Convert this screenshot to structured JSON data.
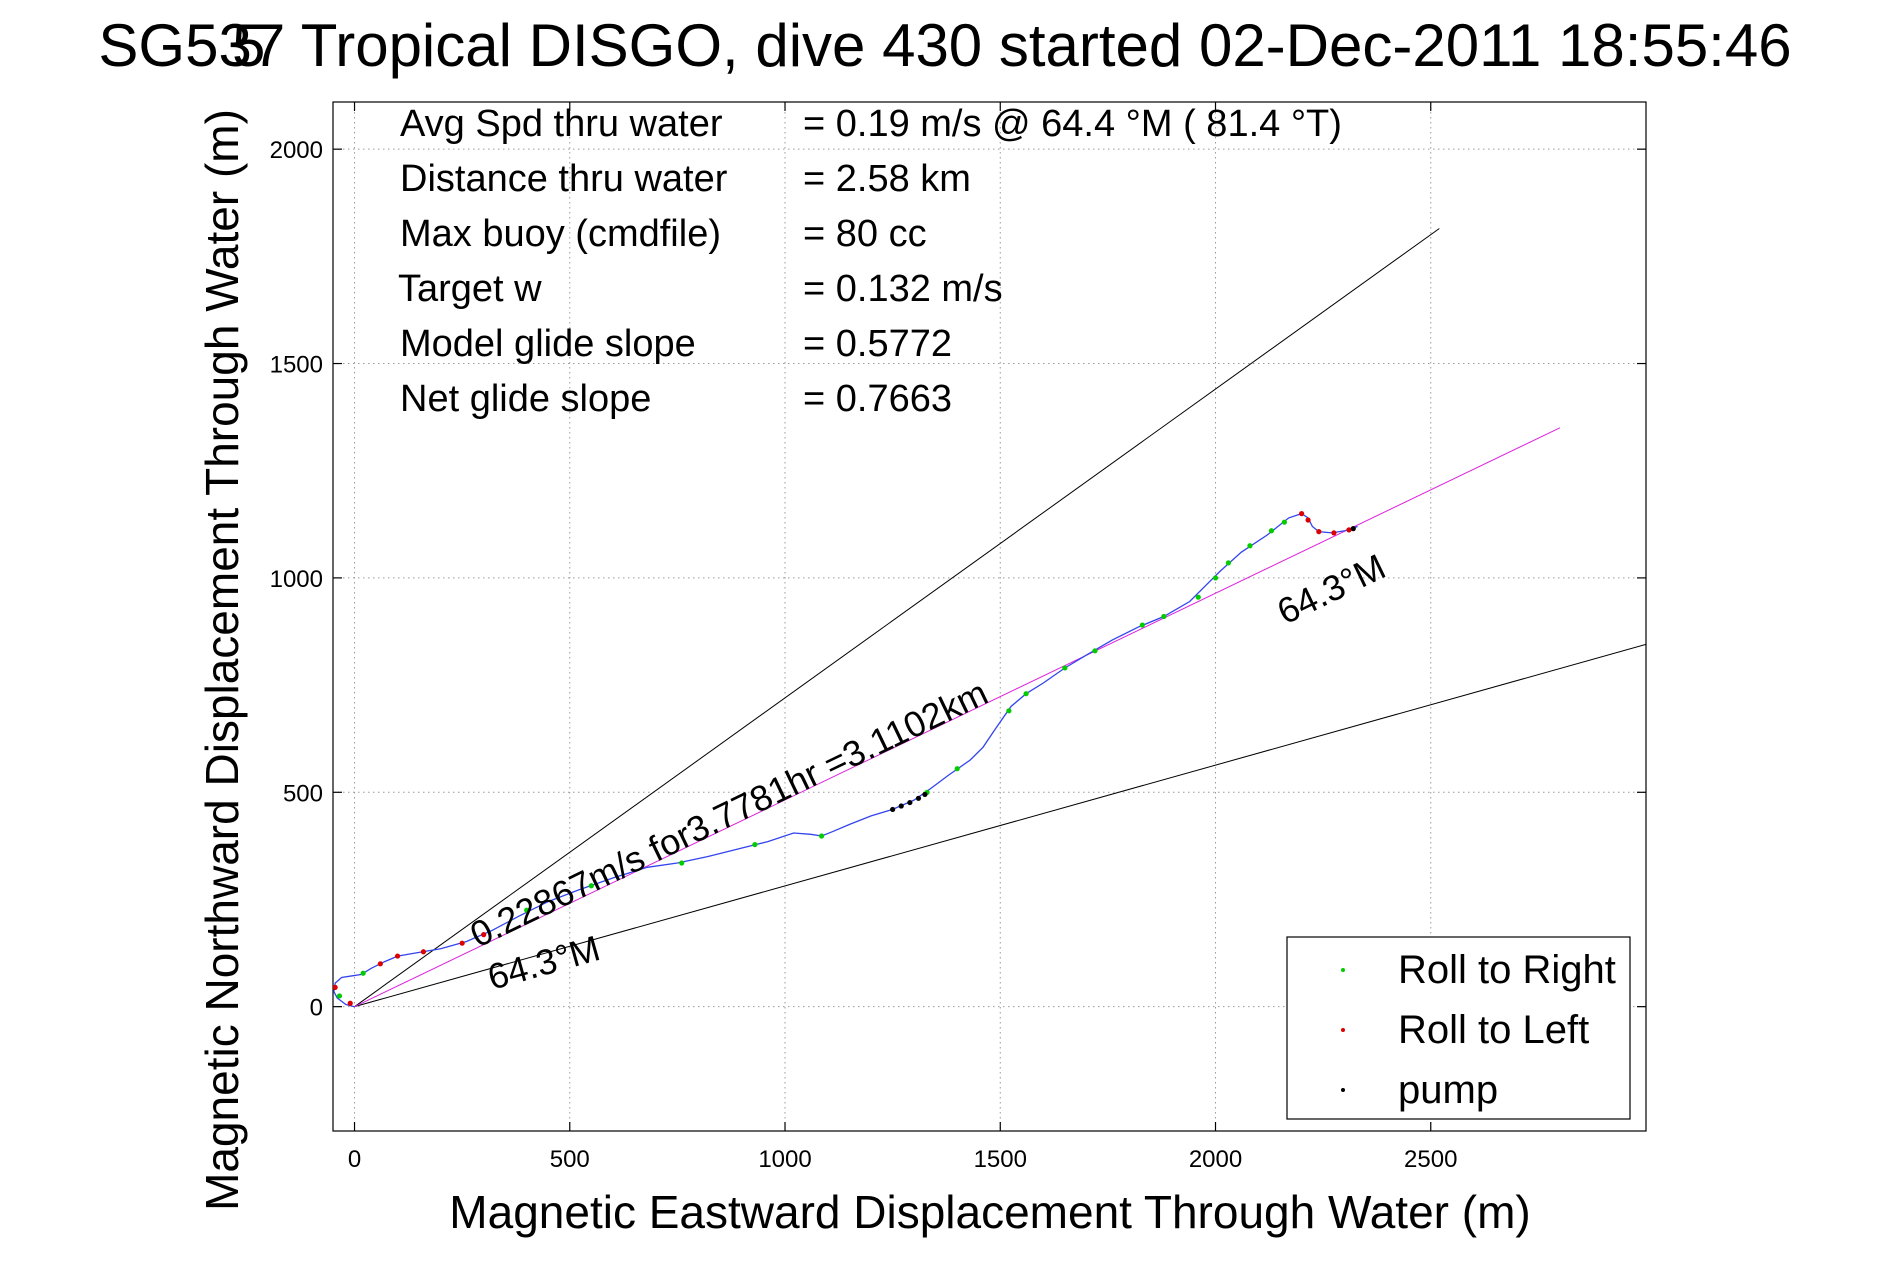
{
  "chart_data": {
    "type": "line",
    "title": "SG537 Tropical DISGO, dive 430 started 02-Dec-2011 18:55:46",
    "title_overlap_glyph": "5",
    "xlabel": "Magnetic Eastward Displacement Through Water (m)",
    "ylabel": "Magnetic Northward Displacement Through Water (m)",
    "xlim": [
      -50,
      3000
    ],
    "ylim": [
      -290,
      2110
    ],
    "xticks": [
      0,
      500,
      1000,
      1500,
      2000,
      2500
    ],
    "yticks": [
      0,
      500,
      1000,
      1500,
      2000
    ],
    "grid": true,
    "legend_position": "bottom-right",
    "stats": [
      {
        "label": "Avg Spd thru water",
        "value": "=  0.19 m/s @  64.4 °M ( 81.4 °T)"
      },
      {
        "label": "Distance thru water",
        "value": "=  2.58 km"
      },
      {
        "label": "Max buoy (cmdfile)",
        "value": "= 80 cc"
      },
      {
        "label": "Target w",
        "value": "= 0.132 m/s"
      },
      {
        "label": "Model glide slope",
        "value": "= 0.5772"
      },
      {
        "label": "Net glide slope",
        "value": "= 0.7663"
      }
    ],
    "annotations": {
      "speed_text": "0.22867m/s for3.7781hr =3.1102km",
      "heading_start": "64.3°M",
      "heading_end": "64.3°M"
    },
    "reference_lines": [
      {
        "kind": "upper-bound",
        "color": "#000000",
        "points": [
          [
            0,
            0
          ],
          [
            2520,
            1815
          ]
        ]
      },
      {
        "kind": "lower-bound",
        "color": "#000000",
        "points": [
          [
            0,
            0
          ],
          [
            3000,
            845
          ]
        ]
      },
      {
        "kind": "heading",
        "color": "#dd22dd",
        "points": [
          [
            0,
            0
          ],
          [
            2800,
            1350
          ]
        ]
      }
    ],
    "track": {
      "color": "#3344ee",
      "points": [
        [
          0,
          0
        ],
        [
          -20,
          5
        ],
        [
          -40,
          20
        ],
        [
          -48,
          35
        ],
        [
          -45,
          55
        ],
        [
          -30,
          68
        ],
        [
          -5,
          72
        ],
        [
          15,
          75
        ],
        [
          40,
          90
        ],
        [
          70,
          105
        ],
        [
          100,
          118
        ],
        [
          140,
          125
        ],
        [
          200,
          135
        ],
        [
          260,
          152
        ],
        [
          320,
          178
        ],
        [
          380,
          210
        ],
        [
          450,
          245
        ],
        [
          520,
          272
        ],
        [
          600,
          300
        ],
        [
          680,
          325
        ],
        [
          750,
          335
        ],
        [
          820,
          350
        ],
        [
          900,
          370
        ],
        [
          960,
          385
        ],
        [
          1020,
          405
        ],
        [
          1060,
          402
        ],
        [
          1085,
          398
        ],
        [
          1110,
          408
        ],
        [
          1150,
          425
        ],
        [
          1200,
          445
        ],
        [
          1250,
          460
        ],
        [
          1300,
          482
        ],
        [
          1340,
          510
        ],
        [
          1380,
          540
        ],
        [
          1430,
          575
        ],
        [
          1460,
          605
        ],
        [
          1490,
          650
        ],
        [
          1525,
          700
        ],
        [
          1560,
          730
        ],
        [
          1600,
          755
        ],
        [
          1650,
          790
        ],
        [
          1700,
          820
        ],
        [
          1760,
          855
        ],
        [
          1820,
          885
        ],
        [
          1880,
          910
        ],
        [
          1940,
          945
        ],
        [
          1980,
          985
        ],
        [
          2010,
          1015
        ],
        [
          2060,
          1060
        ],
        [
          2120,
          1100
        ],
        [
          2170,
          1140
        ],
        [
          2200,
          1150
        ],
        [
          2215,
          1140
        ],
        [
          2225,
          1120
        ],
        [
          2240,
          1108
        ],
        [
          2270,
          1105
        ],
        [
          2300,
          1110
        ],
        [
          2330,
          1120
        ]
      ]
    },
    "series": [
      {
        "name": "Roll to Right",
        "color": "#00cc00",
        "values": [
          [
            -35,
            25
          ],
          [
            20,
            78
          ],
          [
            400,
            225
          ],
          [
            550,
            282
          ],
          [
            760,
            335
          ],
          [
            930,
            378
          ],
          [
            1085,
            398
          ],
          [
            1330,
            500
          ],
          [
            1400,
            555
          ],
          [
            1520,
            690
          ],
          [
            1560,
            730
          ],
          [
            1650,
            790
          ],
          [
            1720,
            830
          ],
          [
            1830,
            890
          ],
          [
            1880,
            910
          ],
          [
            1960,
            955
          ],
          [
            2000,
            1000
          ],
          [
            2030,
            1035
          ],
          [
            2080,
            1075
          ],
          [
            2130,
            1110
          ],
          [
            2160,
            1130
          ]
        ]
      },
      {
        "name": "Roll to Left",
        "color": "#dd0000",
        "values": [
          [
            -45,
            45
          ],
          [
            -10,
            8
          ],
          [
            60,
            100
          ],
          [
            100,
            118
          ],
          [
            160,
            128
          ],
          [
            250,
            148
          ],
          [
            300,
            168
          ],
          [
            2200,
            1150
          ],
          [
            2215,
            1135
          ],
          [
            2240,
            1108
          ],
          [
            2275,
            1105
          ],
          [
            2310,
            1112
          ]
        ]
      },
      {
        "name": "pump",
        "color": "#000000",
        "values": [
          [
            1250,
            460
          ],
          [
            1270,
            468
          ],
          [
            1290,
            476
          ],
          [
            1310,
            486
          ],
          [
            1325,
            495
          ],
          [
            2320,
            1115
          ]
        ]
      }
    ]
  }
}
